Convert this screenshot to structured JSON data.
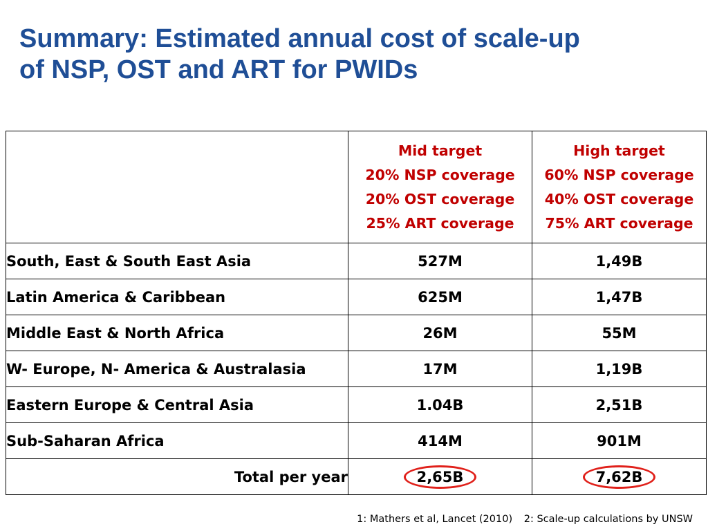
{
  "title": {
    "line1": "Summary: Estimated annual cost of scale-up",
    "line2": "of NSP, OST and ART for PWIDs"
  },
  "table": {
    "header": {
      "region": "",
      "mid": [
        "Mid target",
        "20% NSP coverage",
        "20% OST coverage",
        "25% ART coverage"
      ],
      "high": [
        "High target",
        "60% NSP coverage",
        "40% OST coverage",
        "75% ART coverage"
      ]
    },
    "rows": [
      {
        "region": "South, East & South East Asia",
        "mid": "527M",
        "high": "1,49B"
      },
      {
        "region": "Latin America & Caribbean",
        "mid": "625M",
        "high": "1,47B"
      },
      {
        "region": "Middle East & North Africa",
        "mid": "26M",
        "high": "55M"
      },
      {
        "region": "W- Europe, N- America & Australasia",
        "mid": "17M",
        "high": "1,19B"
      },
      {
        "region": "Eastern Europe & Central Asia",
        "mid": "1.04B",
        "high": "2,51B"
      },
      {
        "region": "Sub-Saharan Africa",
        "mid": "414M",
        "high": "901M"
      }
    ],
    "total": {
      "label": "Total per year",
      "mid": "2,65B",
      "high": "7,62B"
    }
  },
  "footnote": {
    "ref1": "1: Mathers et al, Lancet (2010)",
    "ref2": "2: Scale-up calculations by UNSW"
  },
  "colors": {
    "title": "#1f4e96",
    "header_text": "#c00000",
    "highlight_circle": "#e0201a"
  }
}
